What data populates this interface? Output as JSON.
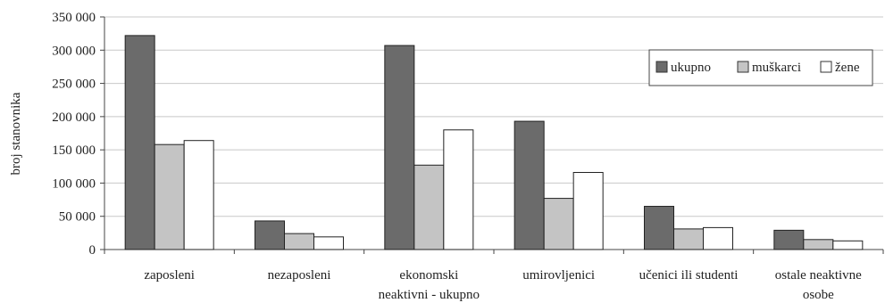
{
  "chart_data": {
    "type": "bar",
    "title": "",
    "xlabel": "",
    "ylabel": "broj stanovnika",
    "ylim": [
      0,
      350000
    ],
    "yticks": [
      0,
      50000,
      100000,
      150000,
      200000,
      250000,
      300000,
      350000
    ],
    "ytick_labels": [
      "0",
      "50 000",
      "100 000",
      "150 000",
      "200 000",
      "250 000",
      "300 000",
      "350 000"
    ],
    "grid": true,
    "legend_position": "top-right",
    "categories": [
      [
        "zaposleni"
      ],
      [
        "nezaposleni"
      ],
      [
        "ekonomski",
        "neaktivni - ukupno"
      ],
      [
        "umirovljenici"
      ],
      [
        "učenici ili studenti"
      ],
      [
        "ostale neaktivne",
        "osobe"
      ]
    ],
    "series": [
      {
        "name": "ukupno",
        "color": "#6b6b6b",
        "values": [
          322000,
          43000,
          307000,
          193000,
          65000,
          29000
        ]
      },
      {
        "name": "muškarci",
        "color": "#c4c4c4",
        "values": [
          158000,
          24000,
          127000,
          77000,
          31000,
          15000
        ]
      },
      {
        "name": "žene",
        "color": "#ffffff",
        "values": [
          164000,
          19000,
          180000,
          116000,
          33000,
          13000
        ]
      }
    ]
  }
}
